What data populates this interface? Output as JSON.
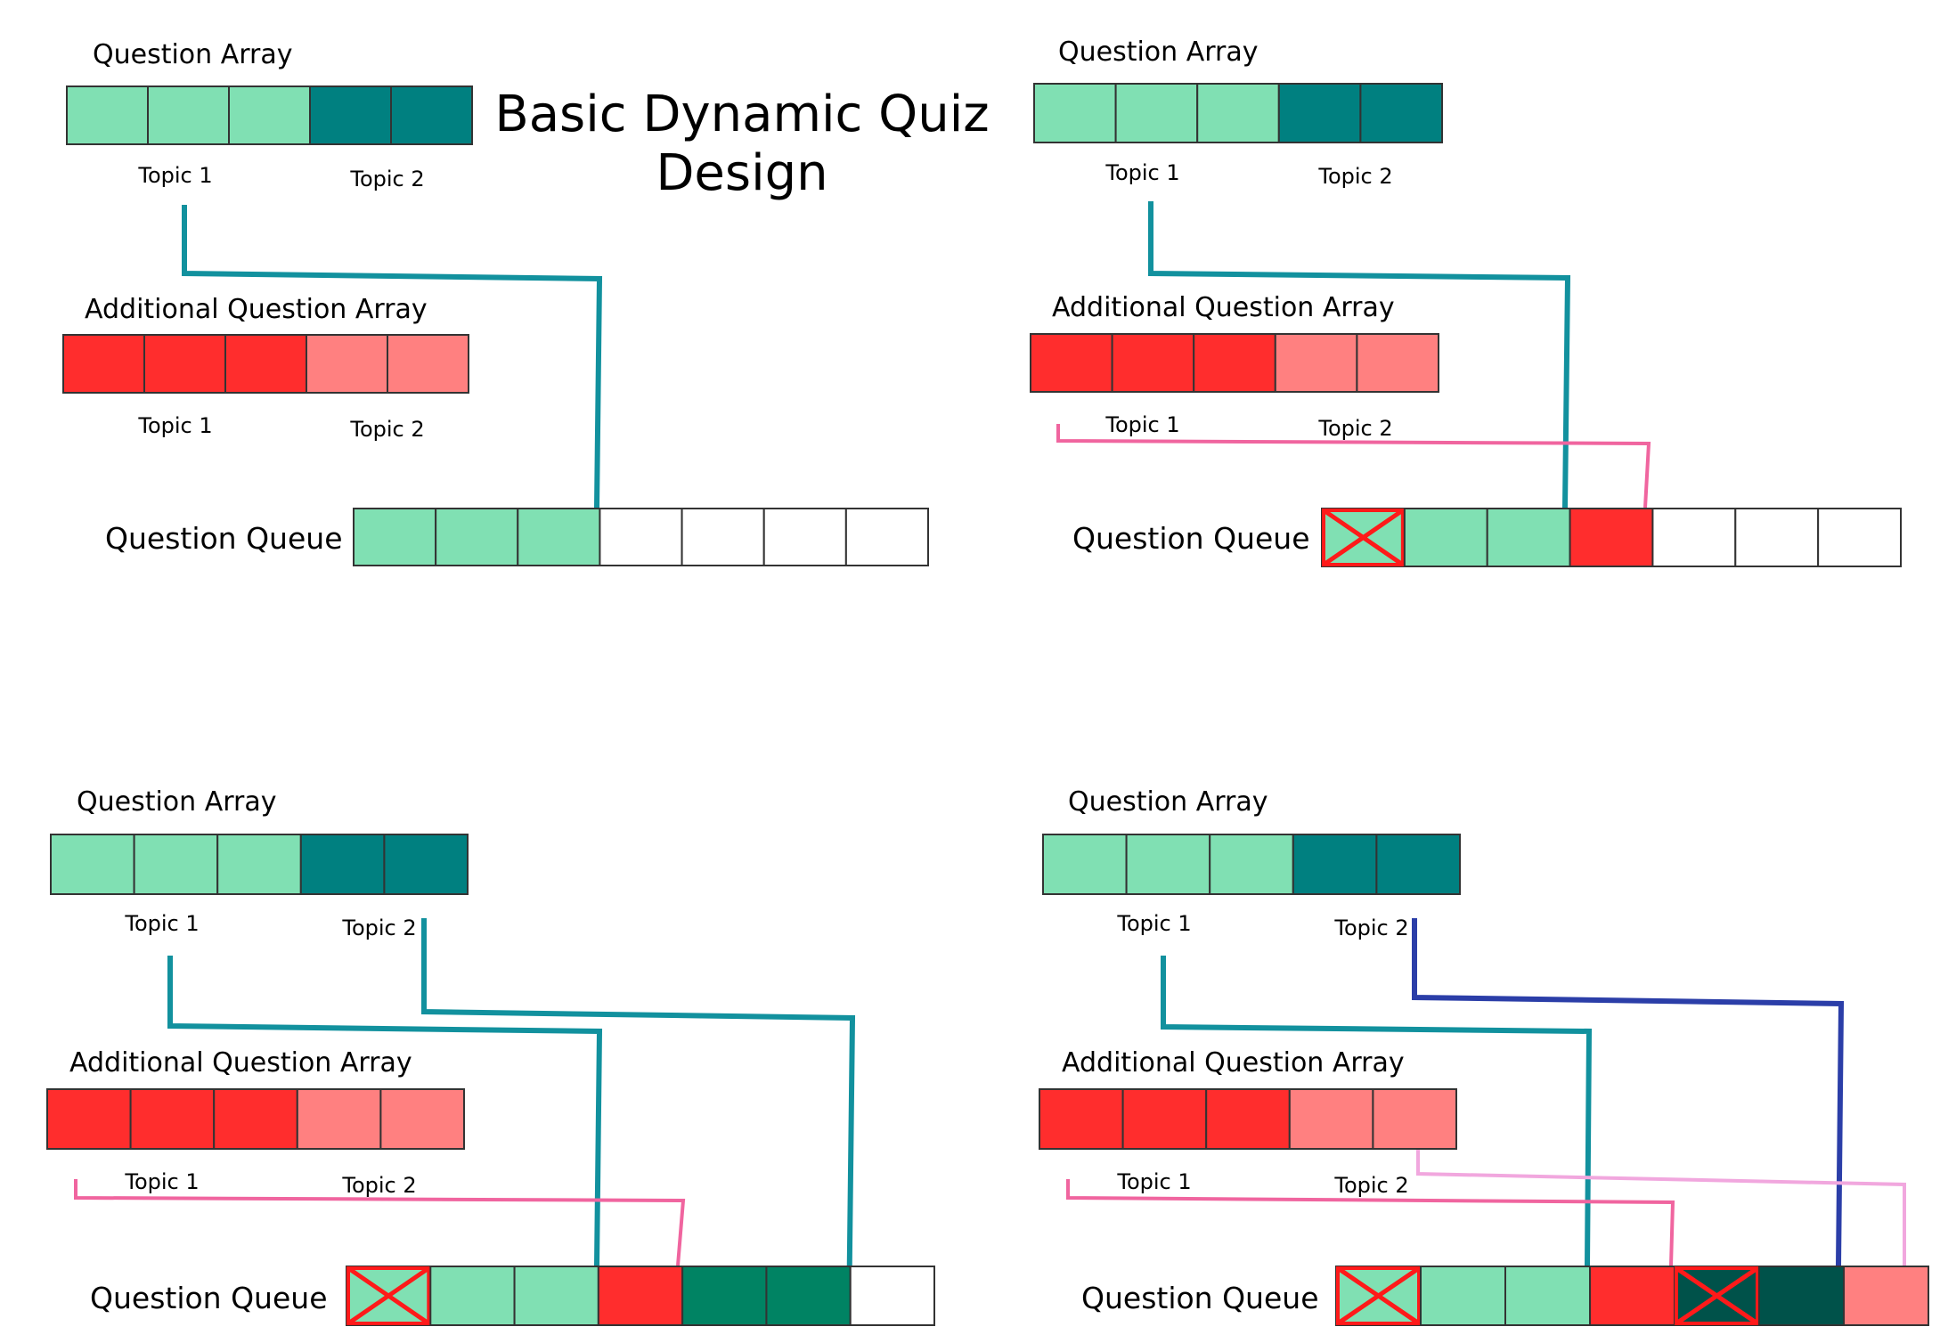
{
  "title_lines": [
    "Basic Dynamic Quiz",
    "Design"
  ],
  "colors": {
    "topic1_question": "#80e0b3",
    "topic2_question": "#008080",
    "topic1_additional": "#ff2d2d",
    "topic2_additional": "#ff8080",
    "queue_topic2_fill": "#008363",
    "queue_dark_fill": "#00524a",
    "cell_stroke": "#333333",
    "cross_mark": "#ff1a1a",
    "link_question": "#12919e",
    "link_additional": "#f0659f",
    "link_dark_blue": "#2b3ea8",
    "link_light_pink": "#f1a7de"
  },
  "panels": [
    {
      "question_array": {
        "label": "Question Array",
        "cells": [
          "topic1_question",
          "topic1_question",
          "topic1_question",
          "topic2_question",
          "topic2_question"
        ],
        "topic_labels": [
          "Topic 1",
          "Topic 2"
        ]
      },
      "additional_array": {
        "label": "Additional Question Array",
        "cells": [
          "topic1_additional",
          "topic1_additional",
          "topic1_additional",
          "topic2_additional",
          "topic2_additional"
        ],
        "topic_labels": [
          "Topic 1",
          "Topic 2"
        ]
      },
      "queue": {
        "label": "Question Queue",
        "cells": [
          {
            "fill": "topic1_question",
            "crossed": false
          },
          {
            "fill": "topic1_question",
            "crossed": false
          },
          {
            "fill": "topic1_question",
            "crossed": false
          },
          {
            "fill": "empty",
            "crossed": false
          },
          {
            "fill": "empty",
            "crossed": false
          },
          {
            "fill": "empty",
            "crossed": false
          },
          {
            "fill": "empty",
            "crossed": false
          }
        ]
      }
    },
    {
      "question_array": {
        "label": "Question Array",
        "cells": [
          "topic1_question",
          "topic1_question",
          "topic1_question",
          "topic2_question",
          "topic2_question"
        ],
        "topic_labels": [
          "Topic 1",
          "Topic 2"
        ]
      },
      "additional_array": {
        "label": "Additional Question Array",
        "cells": [
          "topic1_additional",
          "topic1_additional",
          "topic1_additional",
          "topic2_additional",
          "topic2_additional"
        ],
        "topic_labels": [
          "Topic 1",
          "Topic 2"
        ]
      },
      "queue": {
        "label": "Question Queue",
        "cells": [
          {
            "fill": "topic1_question",
            "crossed": true
          },
          {
            "fill": "topic1_question",
            "crossed": false
          },
          {
            "fill": "topic1_question",
            "crossed": false
          },
          {
            "fill": "topic1_additional",
            "crossed": false
          },
          {
            "fill": "empty",
            "crossed": false
          },
          {
            "fill": "empty",
            "crossed": false
          },
          {
            "fill": "empty",
            "crossed": false
          }
        ]
      }
    },
    {
      "question_array": {
        "label": "Question Array",
        "cells": [
          "topic1_question",
          "topic1_question",
          "topic1_question",
          "topic2_question",
          "topic2_question"
        ],
        "topic_labels": [
          "Topic 1",
          "Topic 2"
        ]
      },
      "additional_array": {
        "label": "Additional Question Array",
        "cells": [
          "topic1_additional",
          "topic1_additional",
          "topic1_additional",
          "topic2_additional",
          "topic2_additional"
        ],
        "topic_labels": [
          "Topic 1",
          "Topic 2"
        ]
      },
      "queue": {
        "label": "Question Queue",
        "cells": [
          {
            "fill": "topic1_question",
            "crossed": true
          },
          {
            "fill": "topic1_question",
            "crossed": false
          },
          {
            "fill": "topic1_question",
            "crossed": false
          },
          {
            "fill": "topic1_additional",
            "crossed": false
          },
          {
            "fill": "queue_topic2_fill",
            "crossed": false
          },
          {
            "fill": "queue_topic2_fill",
            "crossed": false
          },
          {
            "fill": "empty",
            "crossed": false
          }
        ]
      }
    },
    {
      "question_array": {
        "label": "Question Array",
        "cells": [
          "topic1_question",
          "topic1_question",
          "topic1_question",
          "topic2_question",
          "topic2_question"
        ],
        "topic_labels": [
          "Topic 1",
          "Topic 2"
        ]
      },
      "additional_array": {
        "label": "Additional Question Array",
        "cells": [
          "topic1_additional",
          "topic1_additional",
          "topic1_additional",
          "topic2_additional",
          "topic2_additional"
        ],
        "topic_labels": [
          "Topic 1",
          "Topic 2"
        ]
      },
      "queue": {
        "label": "Question Queue",
        "cells": [
          {
            "fill": "topic1_question",
            "crossed": true
          },
          {
            "fill": "topic1_question",
            "crossed": false
          },
          {
            "fill": "topic1_question",
            "crossed": false
          },
          {
            "fill": "topic1_additional",
            "crossed": false
          },
          {
            "fill": "queue_dark_fill",
            "crossed": true
          },
          {
            "fill": "queue_dark_fill",
            "crossed": false
          },
          {
            "fill": "topic2_additional",
            "crossed": false
          }
        ]
      }
    }
  ]
}
